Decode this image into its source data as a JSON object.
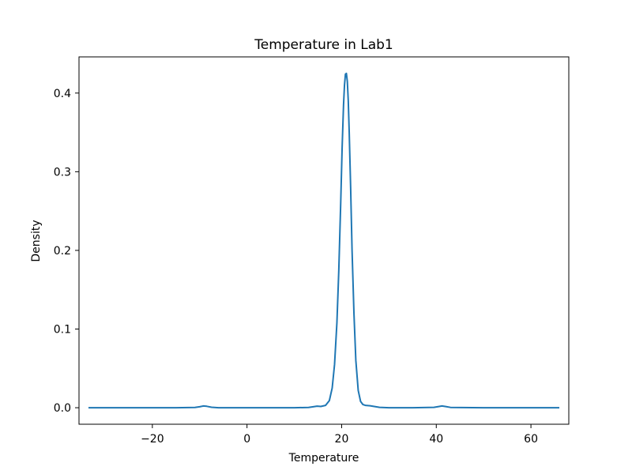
{
  "chart_data": {
    "type": "line",
    "title": "Temperature in Lab1",
    "xlabel": "Temperature",
    "ylabel": "Density",
    "xlim": [
      -35.5,
      68
    ],
    "ylim": [
      -0.021,
      0.446
    ],
    "xticks": [
      -20,
      0,
      20,
      40,
      60
    ],
    "xtick_labels": [
      "−20",
      "0",
      "20",
      "40",
      "60"
    ],
    "yticks": [
      0.0,
      0.1,
      0.2,
      0.3,
      0.4
    ],
    "ytick_labels": [
      "0.0",
      "0.1",
      "0.2",
      "0.3",
      "0.4"
    ],
    "grid": false,
    "series": [
      {
        "color": "#1f77b4",
        "x": [
          -33.5,
          -25,
          -15,
          -11,
          -10,
          -9.2,
          -8.5,
          -7.5,
          -6,
          0,
          10,
          13,
          14,
          14.8,
          15.6,
          16.6,
          17.4,
          18,
          18.5,
          19,
          19.4,
          19.8,
          20.1,
          20.4,
          20.6,
          20.8,
          21.0,
          21.2,
          21.4,
          21.6,
          21.9,
          22.2,
          22.6,
          23,
          23.5,
          24,
          24.5,
          25,
          26,
          27,
          28,
          30,
          35,
          39.5,
          40.5,
          41.2,
          42,
          43,
          50,
          60,
          66
        ],
        "y": [
          0.0,
          0.0,
          0.0,
          0.0003,
          0.0012,
          0.0022,
          0.0018,
          0.0006,
          0.0,
          0.0,
          0.0,
          0.0003,
          0.0012,
          0.002,
          0.0016,
          0.003,
          0.009,
          0.025,
          0.055,
          0.108,
          0.175,
          0.26,
          0.33,
          0.385,
          0.41,
          0.424,
          0.425,
          0.415,
          0.39,
          0.35,
          0.28,
          0.2,
          0.12,
          0.06,
          0.022,
          0.008,
          0.004,
          0.003,
          0.0025,
          0.0015,
          0.0005,
          0.0,
          0.0,
          0.0005,
          0.0015,
          0.0022,
          0.0015,
          0.0004,
          0.0,
          0.0,
          0.0
        ]
      }
    ]
  }
}
